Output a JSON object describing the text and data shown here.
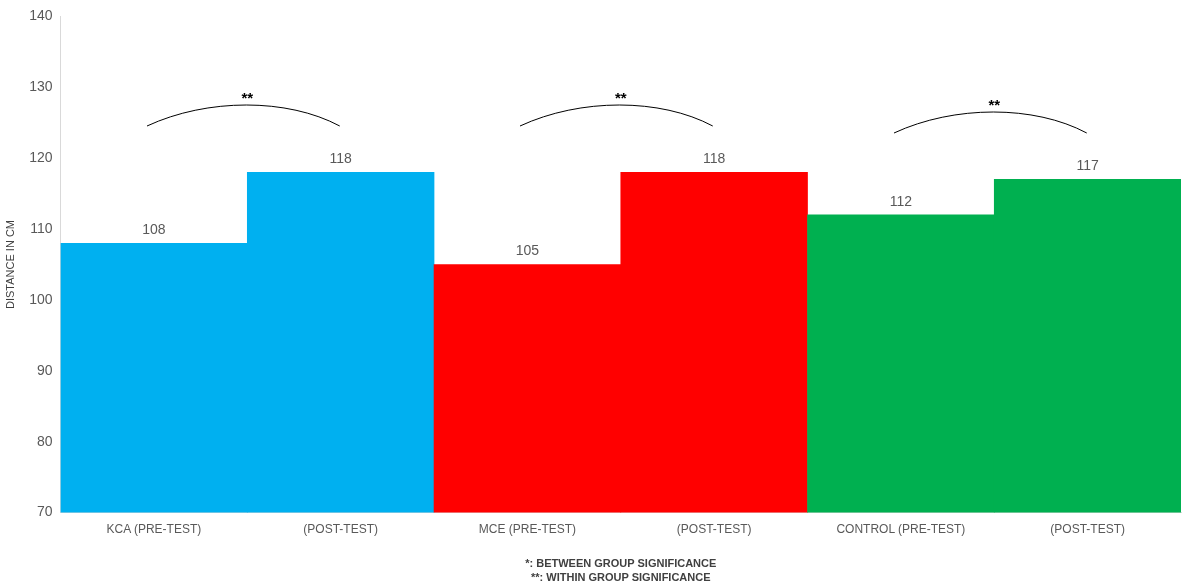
{
  "chart_data": {
    "type": "bar",
    "ylabel": "DISTANCE IN CM",
    "categories": [
      "KCA (PRE-TEST)",
      "(POST-TEST)",
      "MCE (PRE-TEST)",
      "(POST-TEST)",
      "CONTROL (PRE-TEST)",
      "(POST-TEST)"
    ],
    "values": [
      108,
      118,
      105,
      118,
      112,
      117
    ],
    "colors": [
      "#00b0f0",
      "#00b0f0",
      "#ff0000",
      "#ff0000",
      "#00b050",
      "#00b050"
    ],
    "ylim": [
      70,
      140
    ],
    "yticks": [
      70,
      80,
      90,
      100,
      110,
      120,
      130,
      140
    ],
    "grid": false,
    "legend": false,
    "data_labels": true,
    "annotations": [
      "**",
      "**",
      "**",
      "*: BETWEEN GROUP SIGNIFICANCE",
      "**: WITHIN GROUP SIGNIFICANCE"
    ]
  }
}
